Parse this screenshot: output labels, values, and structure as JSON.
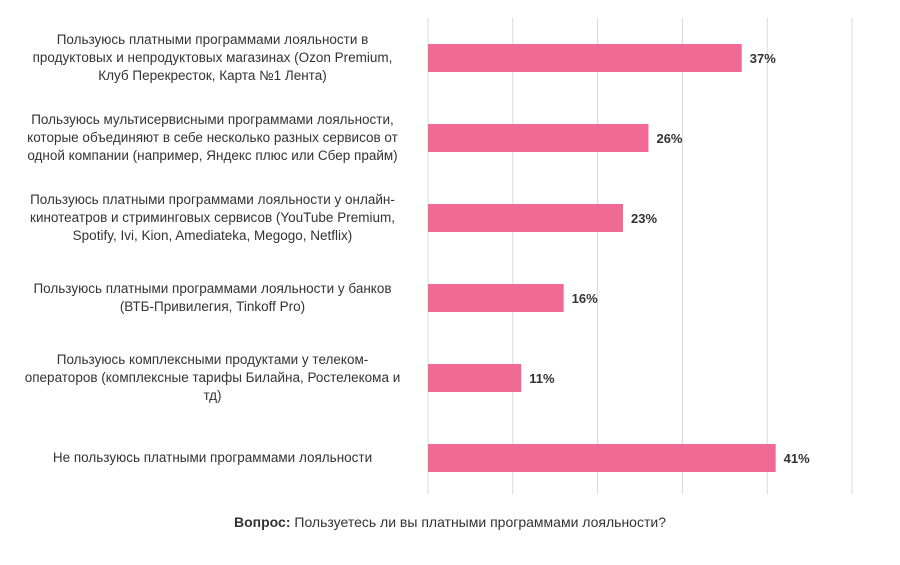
{
  "chart_data": {
    "type": "bar",
    "orientation": "horizontal",
    "categories": [
      "Пользуюсь платными программами лояльности в продуктовых и непродуктовых магазинах  (Ozon Premium, Клуб Перекресток, Карта №1 Лента)",
      "Пользуюсь мультисервисными программами лояльности, которые объединяют в себе несколько разных сервисов от одной компании (например, Яндекс плюс или Сбер прайм)",
      "Пользуюсь платными программами лояльности у онлайн-кинотеатров и стриминговых сервисов (YouTube Premium, Spotify,  Ivi, Kion, Amediateka, Megogo, Netflix)",
      "Пользуюсь платными программами лояльности у банков (ВТБ-Привилегия, Tinkoff Pro)",
      "Пользуюсь комплексными продуктами у телеком-операторов (комплексные тарифы Билайна, Ростелекома и тд)",
      "Не пользуюсь платными программами лояльности"
    ],
    "category_lines": [
      [
        "Пользуюсь платными программами лояльности в",
        "продуктовых и непродуктовых магазинах  (Ozon Premium,",
        "Клуб Перекресток, Карта №1 Лента)"
      ],
      [
        "Пользуюсь мультисервисными программами лояльности,",
        "которые объединяют в себе несколько разных сервисов от",
        "одной компании (например, Яндекс плюс или Сбер прайм)"
      ],
      [
        "Пользуюсь платными программами лояльности у онлайн-",
        "кинотеатров и стриминговых сервисов (YouTube Premium,",
        "Spotify,  Ivi, Kion, Amediateka, Megogo, Netflix)"
      ],
      [
        "Пользуюсь платными программами лояльности у банков",
        "(ВТБ-Привилегия, Tinkoff Pro)"
      ],
      [
        "Пользуюсь комплексными продуктами у телеком-",
        "операторов (комплексные тарифы Билайна, Ростелекома и",
        "тд)"
      ],
      [
        "Не пользуюсь платными программами лояльности"
      ]
    ],
    "values": [
      37,
      26,
      23,
      16,
      11,
      41
    ],
    "data_labels": [
      "37%",
      "26%",
      "23%",
      "16%",
      "11%",
      "41%"
    ],
    "unit": "%",
    "xlim": [
      0,
      50
    ],
    "x_gridlines": [
      0,
      10,
      20,
      30,
      40,
      50
    ],
    "grid": true,
    "bar_color": "#f06b93",
    "gridline_color": "#d9d9d9",
    "title": "",
    "xlabel": "",
    "ylabel": ""
  },
  "footer": {
    "bold": "Вопрос:",
    "text": " Пользуетесь ли вы платными программами лояльности?"
  }
}
